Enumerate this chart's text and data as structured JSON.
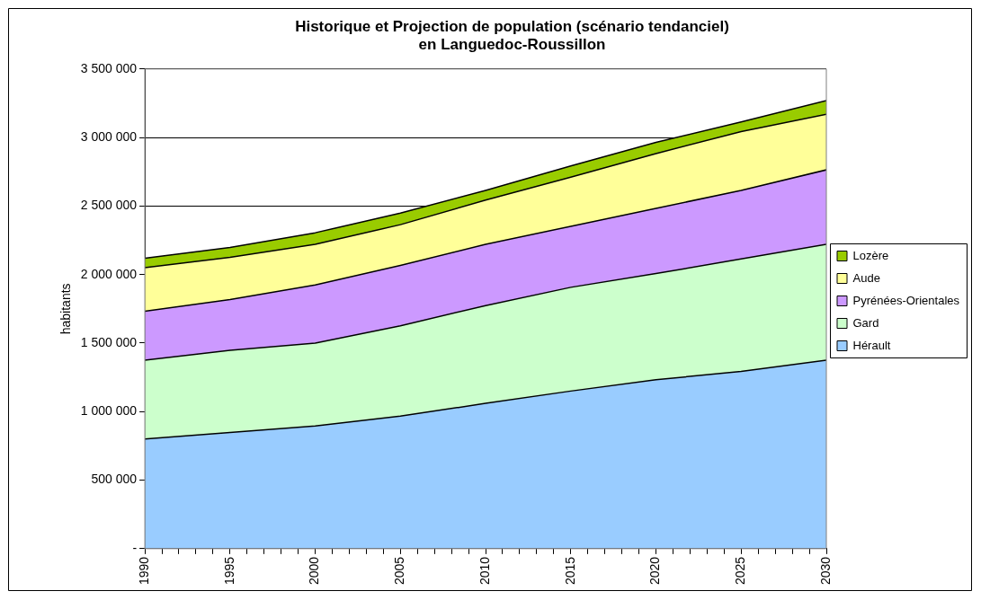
{
  "chart_data": {
    "type": "area",
    "title": "Historique et Projection de population (scénario tendanciel)\nen Languedoc-Roussillon",
    "ylabel": "habitants",
    "x": [
      1990,
      1995,
      2000,
      2005,
      2010,
      2015,
      2020,
      2025,
      2030
    ],
    "series": [
      {
        "name": "Hérault",
        "color": "#99ccff",
        "values": [
          800000,
          848000,
          895000,
          967000,
          1060000,
          1150000,
          1233000,
          1293000,
          1376000
        ]
      },
      {
        "name": "Gard",
        "color": "#ccffcc",
        "values": [
          576000,
          600000,
          605000,
          659000,
          714000,
          757000,
          774000,
          821000,
          845000
        ]
      },
      {
        "name": "Pyrénées-Orientales",
        "color": "#cc99ff",
        "values": [
          357000,
          369000,
          424000,
          441000,
          447000,
          445000,
          476000,
          500000,
          543000
        ]
      },
      {
        "name": "Aude",
        "color": "#ffff99",
        "values": [
          317000,
          309000,
          297000,
          297000,
          322000,
          358000,
          400000,
          429000,
          405000
        ]
      },
      {
        "name": "Lozère",
        "color": "#99cc00",
        "values": [
          69000,
          72000,
          84000,
          84000,
          71000,
          83000,
          81000,
          71000,
          100000
        ]
      }
    ],
    "stacked": true,
    "xlim": [
      1990,
      2030
    ],
    "xticks": [
      1990,
      {
        "value": 1991,
        "label": null
      },
      {
        "value": 1992,
        "label": null
      },
      {
        "value": 1993,
        "label": null
      },
      {
        "value": 1994,
        "label": null
      },
      1995,
      {
        "value": 1996,
        "label": null
      },
      {
        "value": 1997,
        "label": null
      },
      {
        "value": 1998,
        "label": null
      },
      {
        "value": 1999,
        "label": null
      },
      2000,
      {
        "value": 2001,
        "label": null
      },
      {
        "value": 2002,
        "label": null
      },
      {
        "value": 2003,
        "label": null
      },
      {
        "value": 2004,
        "label": null
      },
      2005,
      {
        "value": 2006,
        "label": null
      },
      {
        "value": 2007,
        "label": null
      },
      {
        "value": 2008,
        "label": null
      },
      {
        "value": 2009,
        "label": null
      },
      2010,
      {
        "value": 2011,
        "label": null
      },
      {
        "value": 2012,
        "label": null
      },
      {
        "value": 2013,
        "label": null
      },
      {
        "value": 2014,
        "label": null
      },
      2015,
      {
        "value": 2016,
        "label": null
      },
      {
        "value": 2017,
        "label": null
      },
      {
        "value": 2018,
        "label": null
      },
      {
        "value": 2019,
        "label": null
      },
      2020,
      {
        "value": 2021,
        "label": null
      },
      {
        "value": 2022,
        "label": null
      },
      {
        "value": 2023,
        "label": null
      },
      {
        "value": 2024,
        "label": null
      },
      2025,
      {
        "value": 2026,
        "label": null
      },
      {
        "value": 2027,
        "label": null
      },
      {
        "value": 2028,
        "label": null
      },
      {
        "value": 2029,
        "label": null
      },
      2030
    ],
    "ylim": [
      0,
      3500000
    ],
    "yticks": [
      {
        "value": 0,
        "label": "-"
      },
      {
        "value": 500000,
        "label": "500 000"
      },
      {
        "value": 1000000,
        "label": "1 000 000"
      },
      {
        "value": 1500000,
        "label": "1 500 000"
      },
      {
        "value": 2000000,
        "label": "2 000 000"
      },
      {
        "value": 2500000,
        "label": "2 500 000"
      },
      {
        "value": 3000000,
        "label": "3 000 000"
      },
      {
        "value": 3500000,
        "label": "3 500 000"
      }
    ],
    "grid": "y",
    "legend": "right",
    "marker": "none",
    "line_style": "solid"
  }
}
